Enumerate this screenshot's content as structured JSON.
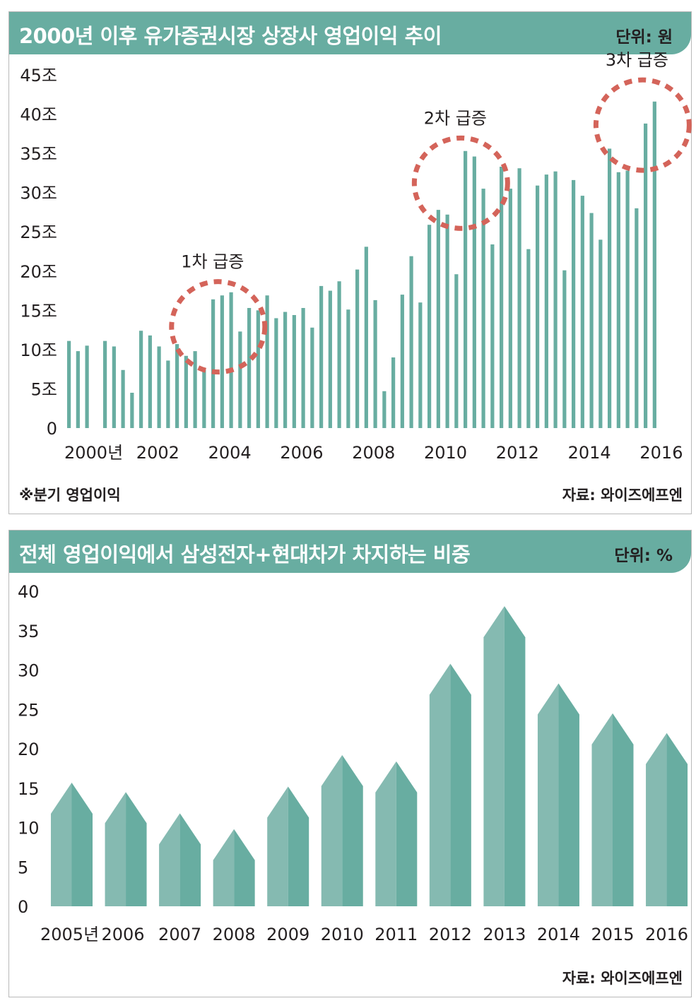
{
  "chart1": {
    "title": "2000년 이후 유가증권시장 상장사 영업이익 추이",
    "unit": "단위: 원",
    "footnote": "※분기 영업이익",
    "source": "자료: 와이즈에프엔",
    "colors": {
      "bar": "#68ada1",
      "header": "#68ada1",
      "circle": "#d4645a"
    },
    "annotations": [
      {
        "label": "1차 급증",
        "center_x": 2004.2,
        "center_y": 12.9
      },
      {
        "label": "2차 급증",
        "center_x": 2010.95,
        "center_y": 31.2
      },
      {
        "label": "3차 급증",
        "center_x": 2016.0,
        "center_y": 38.6
      }
    ],
    "chart_data": {
      "type": "bar",
      "ylim": [
        0,
        45
      ],
      "y_ticks": [
        {
          "value": 0,
          "label": "0"
        },
        {
          "value": 5,
          "label": "5조"
        },
        {
          "value": 10,
          "label": "10조"
        },
        {
          "value": 15,
          "label": "15조"
        },
        {
          "value": 20,
          "label": "20조"
        },
        {
          "value": 25,
          "label": "25조"
        },
        {
          "value": 30,
          "label": "30조"
        },
        {
          "value": 35,
          "label": "35조"
        },
        {
          "value": 40,
          "label": "40조"
        },
        {
          "value": 45,
          "label": "45조"
        }
      ],
      "x_ticks": [
        {
          "value": 2000,
          "label": "2000년"
        },
        {
          "value": 2002,
          "label": "2002"
        },
        {
          "value": 2004,
          "label": "2004"
        },
        {
          "value": 2006,
          "label": "2006"
        },
        {
          "value": 2008,
          "label": "2008"
        },
        {
          "value": 2010,
          "label": "2010"
        },
        {
          "value": 2012,
          "label": "2012"
        },
        {
          "value": 2014,
          "label": "2014"
        },
        {
          "value": 2016,
          "label": "2016"
        }
      ],
      "start_year": 2000,
      "values": [
        11.1,
        9.8,
        10.5,
        0,
        11.1,
        10.4,
        7.4,
        4.5,
        12.4,
        11.8,
        10.4,
        8.6,
        10.7,
        9.2,
        9.8,
        7.4,
        16.4,
        16.9,
        17.3,
        12.3,
        15.3,
        15.0,
        16.9,
        14.0,
        14.8,
        14.4,
        15.3,
        12.8,
        18.1,
        17.5,
        18.7,
        15.1,
        20.2,
        23.1,
        16.3,
        4.7,
        9.0,
        17.0,
        21.9,
        16.0,
        25.9,
        27.8,
        27.2,
        19.6,
        35.3,
        34.6,
        30.5,
        23.4,
        33.3,
        30.5,
        33.1,
        22.8,
        30.9,
        32.3,
        32.7,
        20.1,
        31.6,
        29.6,
        27.4,
        24.0,
        35.6,
        32.6,
        32.8,
        28.0,
        38.8,
        41.6
      ]
    }
  },
  "chart2": {
    "title": "전체 영업이익에서 삼성전자+현대차가 차지하는 비중",
    "unit": "단위: %",
    "source": "자료: 와이즈에프엔",
    "colors": {
      "light": "#85bab1",
      "dark": "#68ada1",
      "header": "#68ada1"
    },
    "chart_data": {
      "type": "bar",
      "ylim": [
        0,
        40
      ],
      "y_ticks": [
        0,
        5,
        10,
        15,
        20,
        25,
        30,
        35,
        40
      ],
      "categories": [
        "2005년",
        "2006",
        "2007",
        "2008",
        "2009",
        "2010",
        "2011",
        "2012",
        "2013",
        "2014",
        "2015",
        "2016"
      ],
      "values": [
        15.7,
        14.5,
        11.8,
        9.8,
        15.2,
        19.2,
        18.4,
        30.8,
        38.1,
        28.3,
        24.5,
        22.0
      ]
    }
  }
}
